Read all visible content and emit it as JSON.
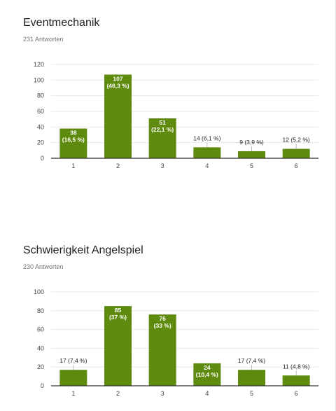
{
  "surveys": [
    {
      "title": "Eventmechanik",
      "responses": "231 Antworten",
      "chart_data": {
        "type": "bar",
        "categories": [
          "1",
          "2",
          "3",
          "4",
          "5",
          "6"
        ],
        "values": [
          38,
          107,
          51,
          14,
          9,
          12
        ],
        "labels": [
          [
            "38",
            "(16,5 %)"
          ],
          [
            "107",
            "(46,3 %)"
          ],
          [
            "51",
            "(22,1 %)"
          ],
          [
            "14 (6,1 %)"
          ],
          [
            "9 (3,9 %)"
          ],
          [
            "12 (5,2 %)"
          ]
        ],
        "label_inside": [
          true,
          true,
          true,
          false,
          false,
          false
        ],
        "yticks": [
          0,
          20,
          40,
          60,
          80,
          100,
          120
        ],
        "ylim": [
          0,
          120
        ],
        "grid": true,
        "bar_color": "#5e8a0e"
      }
    },
    {
      "title": "Schwierigkeit Angelspiel",
      "responses": "230 Antworten",
      "chart_data": {
        "type": "bar",
        "categories": [
          "1",
          "2",
          "3",
          "4",
          "5",
          "6"
        ],
        "values": [
          17,
          85,
          76,
          24,
          17,
          11
        ],
        "labels": [
          [
            "17 (7,4 %)"
          ],
          [
            "85",
            "(37 %)"
          ],
          [
            "76",
            "(33 %)"
          ],
          [
            "24",
            "(10,4 %)"
          ],
          [
            "17 (7,4 %)"
          ],
          [
            "11 (4,8 %)"
          ]
        ],
        "label_inside": [
          false,
          true,
          true,
          true,
          false,
          false
        ],
        "yticks": [
          0,
          20,
          40,
          60,
          80,
          100
        ],
        "ylim": [
          0,
          100
        ],
        "grid": true,
        "bar_color": "#5e8a0e"
      }
    }
  ]
}
